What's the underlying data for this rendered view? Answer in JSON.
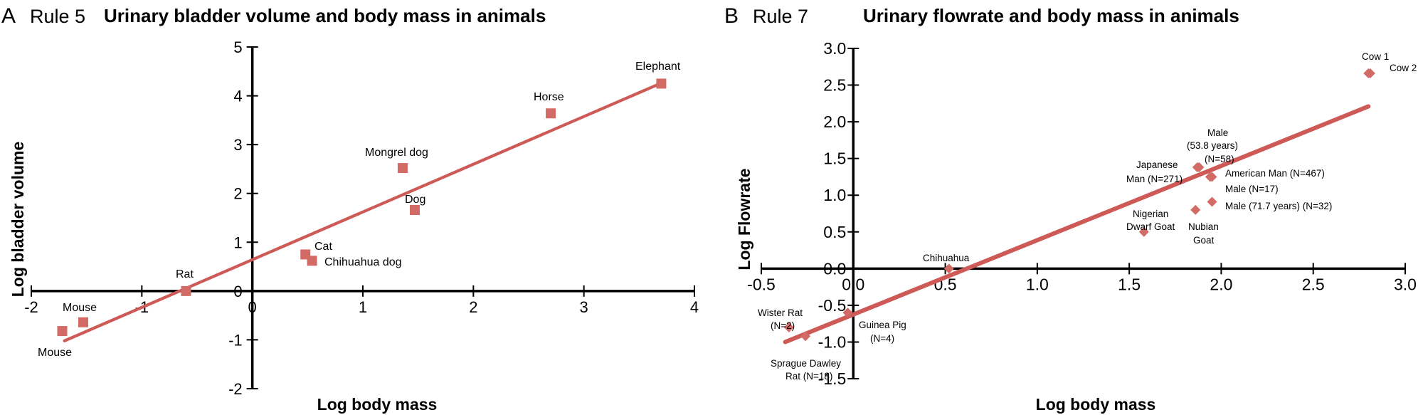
{
  "colors": {
    "marker": "#d26a66",
    "line": "#cd5a57",
    "axis": "#000000"
  },
  "chart_data": [
    {
      "panel": "A",
      "rule": "Rule 5",
      "type": "scatter",
      "title": "Urinary bladder volume and body mass in animals",
      "xlabel": "Log body mass",
      "ylabel": "Log bladder volume",
      "xlim": [
        -2,
        4
      ],
      "ylim": [
        -2,
        5
      ],
      "xticks": [
        "-2",
        "-1",
        "0",
        "1",
        "2",
        "3",
        "4"
      ],
      "yticks": [
        "-2",
        "-1",
        "0",
        "1",
        "2",
        "3",
        "4",
        "5"
      ],
      "marker": "square",
      "points": [
        {
          "label": "Mouse",
          "x": -1.72,
          "y": -0.82
        },
        {
          "label": "Mouse",
          "x": -1.53,
          "y": -0.64
        },
        {
          "label": "Rat",
          "x": -0.6,
          "y": 0.0
        },
        {
          "label": "Cat",
          "x": 0.48,
          "y": 0.75
        },
        {
          "label": "Chihuahua dog",
          "x": 0.54,
          "y": 0.62
        },
        {
          "label": "Mongrel dog",
          "x": 1.36,
          "y": 2.52
        },
        {
          "label": "Dog",
          "x": 1.47,
          "y": 1.66
        },
        {
          "label": "Horse",
          "x": 2.7,
          "y": 3.64
        },
        {
          "label": "Elephant",
          "x": 3.7,
          "y": 4.25
        }
      ],
      "trendline": {
        "x": [
          -1.7,
          3.7
        ],
        "y": [
          -1.02,
          4.26
        ]
      }
    },
    {
      "panel": "B",
      "rule": "Rule 7",
      "type": "scatter",
      "title": "Urinary flowrate and body mass in animals",
      "xlabel": "Log body mass",
      "ylabel": "Log  Flowrate",
      "xlim": [
        -0.5,
        3.0
      ],
      "ylim": [
        -1.5,
        3.0
      ],
      "xticks": [
        "-0.5",
        "0.0",
        "0.5",
        "1.0",
        "1.5",
        "2.0",
        "2.5",
        "3.0"
      ],
      "yticks": [
        "-1.5",
        "-1.0",
        "-0.5",
        "0.0",
        "0.5",
        "1.0",
        "1.5",
        "2.0",
        "2.5",
        "3.0"
      ],
      "marker": "diamond",
      "points": [
        {
          "label": "Wister Rat (N=2)",
          "x": -0.35,
          "y": -0.8
        },
        {
          "label": "Sprague Dawley Rat (N=18)",
          "x": -0.26,
          "y": -0.92
        },
        {
          "label": "Guinea Pig (N=4)",
          "x": -0.03,
          "y": -0.6
        },
        {
          "label": "Chihuahua",
          "x": 0.52,
          "y": 0.0
        },
        {
          "label": "Nigerian Dwarf Goat",
          "x": 1.58,
          "y": 0.5
        },
        {
          "label": "Nubian Goat",
          "x": 1.86,
          "y": 0.8
        },
        {
          "label": "Japanese Man (N=271)",
          "x": 1.87,
          "y": 1.38
        },
        {
          "label": "Male (53.8 years) (N=58)",
          "x": 1.88,
          "y": 1.38
        },
        {
          "label": "American Man (N=467)",
          "x": 1.94,
          "y": 1.25
        },
        {
          "label": "Male (N=17)",
          "x": 1.95,
          "y": 1.25
        },
        {
          "label": "Male (71.7 years) (N=32)",
          "x": 1.95,
          "y": 0.91
        },
        {
          "label": "Cow 1",
          "x": 2.8,
          "y": 2.66
        },
        {
          "label": "Cow 2",
          "x": 2.81,
          "y": 2.66
        }
      ],
      "trendline": {
        "x": [
          -0.37,
          2.8
        ],
        "y": [
          -1.0,
          2.21
        ]
      }
    }
  ],
  "point_label_lines": {
    "a": [
      "Mouse",
      "Mouse",
      "Rat",
      "Cat",
      "Chihuahua dog",
      "Mongrel dog",
      "Dog",
      "Horse",
      "Elephant"
    ],
    "b": [
      "Wister Rat",
      "(N=2)",
      "Sprague Dawley",
      "Rat (N=18)",
      "Guinea Pig",
      "(N=4)",
      "Chihuahua",
      "Nigerian",
      "Dwarf Goat",
      "Nubian",
      "Goat",
      "Japanese",
      "Man (N=271)",
      "Male",
      "(53.8 years)",
      "(N=58)",
      "American Man (N=467)",
      "Male (N=17)",
      "Male (71.7 years) (N=32)",
      "Cow 1",
      "Cow 2"
    ]
  }
}
